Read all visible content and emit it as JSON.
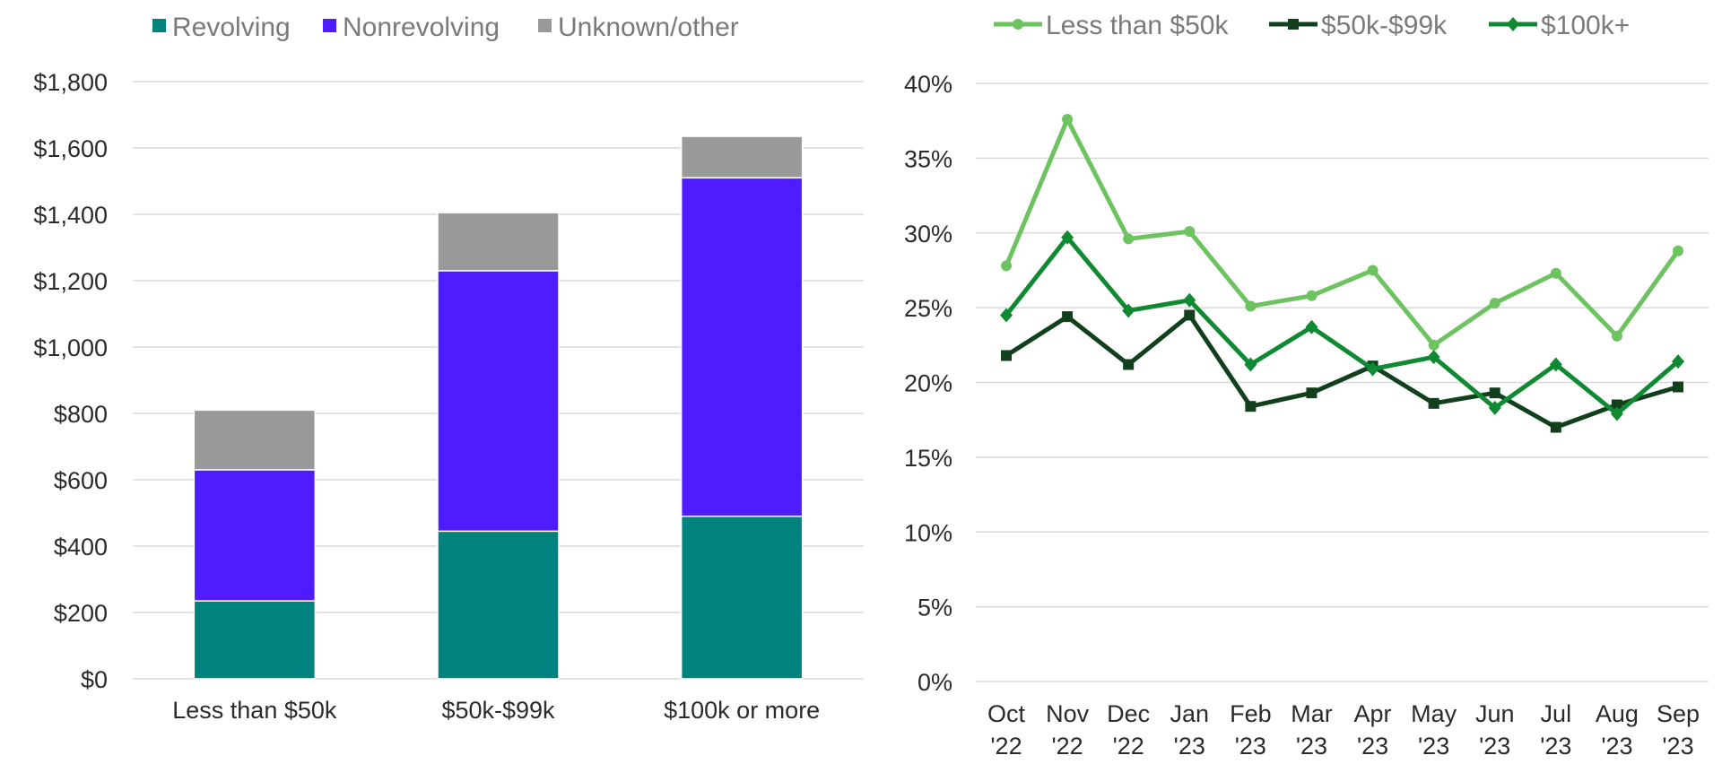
{
  "chart_data": [
    {
      "type": "bar",
      "stacked": true,
      "categories": [
        "Less than $50k",
        "$50k-$99k",
        "$100k or more"
      ],
      "series": [
        {
          "name": "Revolving",
          "color": "#00837f",
          "values": [
            235,
            445,
            490
          ]
        },
        {
          "name": "Nonrevolving",
          "color": "#4f1bff",
          "values": [
            395,
            785,
            1020
          ]
        },
        {
          "name": "Unknown/other",
          "color": "#999999",
          "values": [
            180,
            175,
            125
          ]
        }
      ],
      "yticks": [
        "$0",
        "$200",
        "$400",
        "$600",
        "$800",
        "$1,000",
        "$1,200",
        "$1,400",
        "$1,600",
        "$1,800"
      ],
      "ylim": [
        0,
        1800
      ],
      "grid": true,
      "legend": "top"
    },
    {
      "type": "line",
      "x": [
        "Oct '22",
        "Nov '22",
        "Dec '22",
        "Jan '23",
        "Feb '23",
        "Mar '23",
        "Apr '23",
        "May '23",
        "Jun '23",
        "Jul '23",
        "Aug '23",
        "Sep '23"
      ],
      "xtick_lines": [
        [
          "Oct",
          "'22"
        ],
        [
          "Nov",
          "'22"
        ],
        [
          "Dec",
          "'22"
        ],
        [
          "Jan",
          "'23"
        ],
        [
          "Feb",
          "'23"
        ],
        [
          "Mar",
          "'23"
        ],
        [
          "Apr",
          "'23"
        ],
        [
          "May",
          "'23"
        ],
        [
          "Jun",
          "'23"
        ],
        [
          "Jul",
          "'23"
        ],
        [
          "Aug",
          "'23"
        ],
        [
          "Sep",
          "'23"
        ]
      ],
      "series": [
        {
          "name": "Less than $50k",
          "color": "#6cc35f",
          "marker": "circle",
          "values": [
            27.8,
            37.6,
            29.6,
            30.1,
            25.1,
            25.8,
            27.5,
            22.5,
            25.3,
            27.3,
            23.1,
            28.8
          ]
        },
        {
          "name": "$50k-$99k",
          "color": "#12401c",
          "marker": "square",
          "values": [
            21.8,
            24.4,
            21.2,
            24.5,
            18.4,
            19.3,
            21.1,
            18.6,
            19.3,
            17.0,
            18.5,
            19.7
          ]
        },
        {
          "name": "$100k+",
          "color": "#0f8a32",
          "marker": "diamond",
          "values": [
            24.5,
            29.7,
            24.8,
            25.5,
            21.2,
            23.7,
            20.9,
            21.7,
            18.3,
            21.2,
            17.9,
            21.4
          ]
        }
      ],
      "yticks": [
        "0%",
        "5%",
        "10%",
        "15%",
        "20%",
        "25%",
        "30%",
        "35%",
        "40%"
      ],
      "ylim": [
        0,
        40
      ],
      "grid": true,
      "legend": "top"
    }
  ]
}
